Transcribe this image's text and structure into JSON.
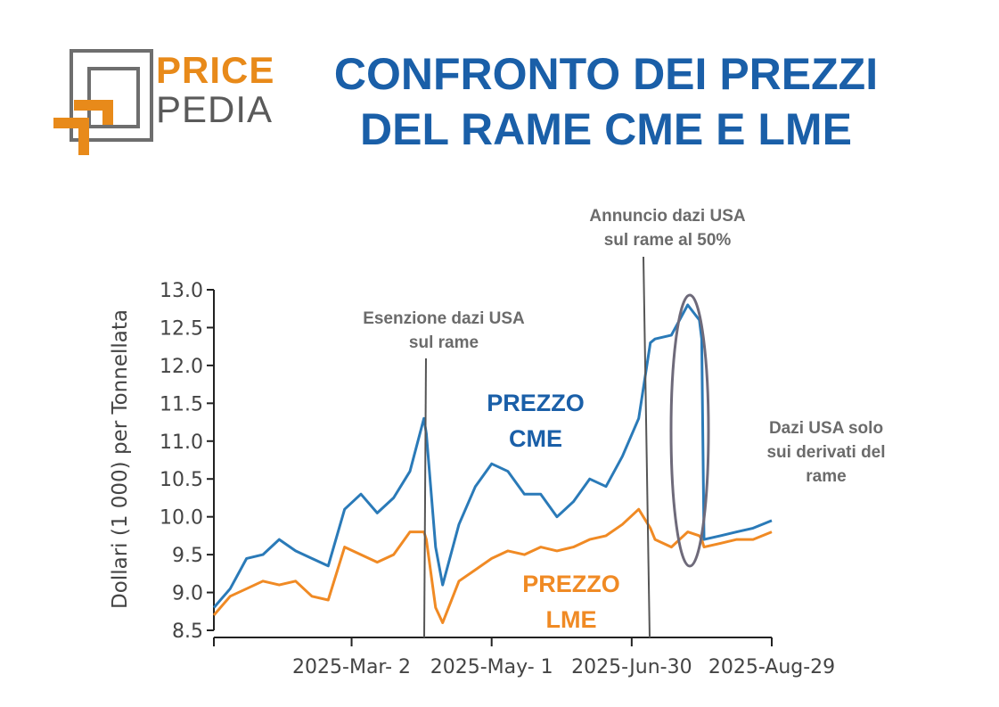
{
  "logo": {
    "line1": "PRICE",
    "line2": "PEDIA"
  },
  "title": {
    "line1": "CONFRONTO DEI PREZZI",
    "line2": "DEL RAME CME E LME"
  },
  "colors": {
    "title": "#1a5fa8",
    "cme": "#2a7ab8",
    "lme": "#f08a24",
    "annotation": "#6b6b6b",
    "logo_orange": "#e88a1a",
    "logo_gray": "#5a5a5a"
  },
  "annotations": [
    {
      "id": "esenzione",
      "lines": [
        "Esenzione dazi USA",
        "sul rame"
      ]
    },
    {
      "id": "annuncio",
      "lines": [
        "Annuncio dazi USA",
        "sul rame al 50%"
      ]
    },
    {
      "id": "derivati",
      "lines": [
        "Dazi USA solo",
        "sui derivati del",
        "rame"
      ]
    }
  ],
  "series_labels": {
    "cme": [
      "PREZZO",
      "CME"
    ],
    "lme": [
      "PREZZO",
      "LME"
    ]
  },
  "chart_data": {
    "type": "line",
    "ylabel": "Dollari (1 000) per Tonnellata",
    "xlabel": "",
    "ylim": [
      8.5,
      13.0
    ],
    "yticks": [
      "8.5",
      "9.0",
      "9.5",
      "10.0",
      "10.5",
      "11.0",
      "11.5",
      "12.0",
      "12.5",
      "13.0"
    ],
    "xticks": [
      "2025-Mar- 2",
      "2025-May- 1",
      "2025-Jun-30",
      "2025-Aug-29"
    ],
    "x": [
      "2025-01-02",
      "2025-01-09",
      "2025-01-16",
      "2025-01-23",
      "2025-01-30",
      "2025-02-06",
      "2025-02-13",
      "2025-02-20",
      "2025-02-27",
      "2025-03-06",
      "2025-03-13",
      "2025-03-20",
      "2025-03-27",
      "2025-04-02",
      "2025-04-03",
      "2025-04-07",
      "2025-04-10",
      "2025-04-17",
      "2025-04-24",
      "2025-05-01",
      "2025-05-08",
      "2025-05-15",
      "2025-05-22",
      "2025-05-29",
      "2025-06-05",
      "2025-06-12",
      "2025-06-19",
      "2025-06-26",
      "2025-07-03",
      "2025-07-08",
      "2025-07-10",
      "2025-07-17",
      "2025-07-24",
      "2025-07-29",
      "2025-07-30",
      "2025-07-31",
      "2025-08-07",
      "2025-08-14",
      "2025-08-21",
      "2025-08-29"
    ],
    "series": [
      {
        "name": "PREZZO CME",
        "values": [
          8.8,
          9.05,
          9.45,
          9.5,
          9.7,
          9.55,
          9.45,
          9.35,
          10.1,
          10.3,
          10.05,
          10.25,
          10.6,
          11.3,
          11.1,
          9.6,
          9.1,
          9.9,
          10.4,
          10.7,
          10.6,
          10.3,
          10.3,
          10.0,
          10.2,
          10.5,
          10.4,
          10.8,
          11.3,
          12.3,
          12.35,
          12.4,
          12.8,
          12.6,
          12.35,
          9.7,
          9.75,
          9.8,
          9.85,
          9.95
        ]
      },
      {
        "name": "PREZZO LME",
        "values": [
          8.7,
          8.95,
          9.05,
          9.15,
          9.1,
          9.15,
          8.95,
          8.9,
          9.6,
          9.5,
          9.4,
          9.5,
          9.8,
          9.8,
          9.7,
          8.8,
          8.6,
          9.15,
          9.3,
          9.45,
          9.55,
          9.5,
          9.6,
          9.55,
          9.6,
          9.7,
          9.75,
          9.9,
          10.1,
          9.85,
          9.7,
          9.6,
          9.8,
          9.75,
          9.7,
          9.6,
          9.65,
          9.7,
          9.7,
          9.8
        ]
      }
    ],
    "legend": "none",
    "grid": false
  }
}
